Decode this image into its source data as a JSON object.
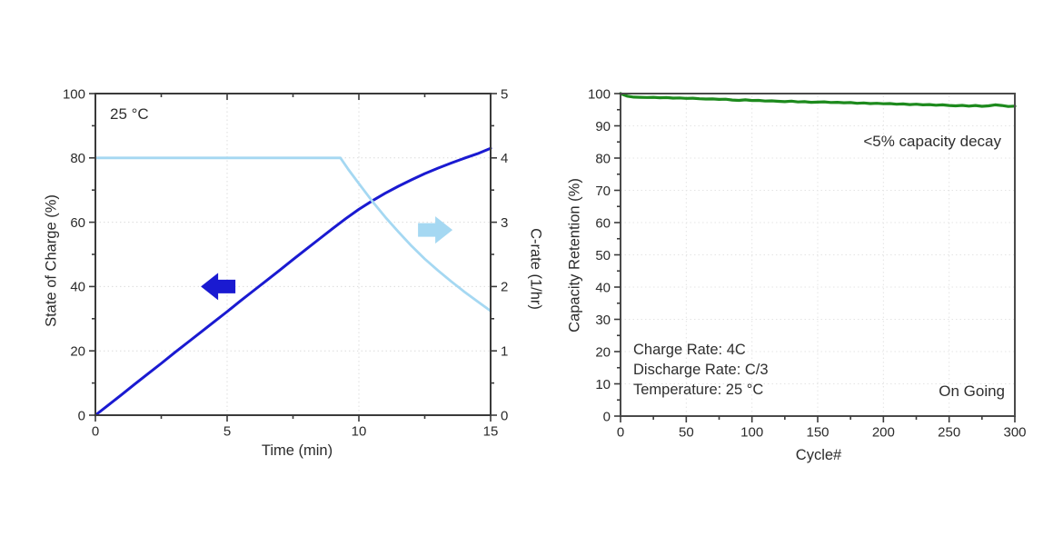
{
  "page": {
    "background": "#ffffff",
    "text_color": "#2f2f2f",
    "frame_color": "#3a3a3a",
    "grid_color": "#dcdcdc"
  },
  "chart_data": [
    {
      "id": "fast-charge-profile",
      "type": "line",
      "title": "",
      "xlabel": "Time (min)",
      "ylabel_left": "State of Charge (%)",
      "ylabel_right": "C-rate (1/hr)",
      "annotation": "25 °C",
      "xlim": [
        0,
        15
      ],
      "x_major": 5,
      "x_minor": 2.5,
      "ylim_left": [
        0,
        100
      ],
      "y_major_left": 20,
      "y_minor_left": 10,
      "ylim_right": [
        0,
        5
      ],
      "y_major_right": 1,
      "y_minor_right": 0.5,
      "grid": "dotted",
      "legend": "none",
      "series": [
        {
          "name": "State of Charge",
          "axis": "left",
          "color": "#1a1ad1",
          "width": 3,
          "points": [
            [
              0,
              0
            ],
            [
              0.5,
              3.2
            ],
            [
              1,
              6.4
            ],
            [
              1.5,
              9.7
            ],
            [
              2,
              12.9
            ],
            [
              2.5,
              16.1
            ],
            [
              3,
              19.4
            ],
            [
              3.5,
              22.6
            ],
            [
              4,
              25.8
            ],
            [
              4.5,
              29.0
            ],
            [
              5,
              32.2
            ],
            [
              5.5,
              35.5
            ],
            [
              6,
              38.7
            ],
            [
              6.5,
              41.9
            ],
            [
              7,
              45.1
            ],
            [
              7.5,
              48.4
            ],
            [
              8,
              51.6
            ],
            [
              8.5,
              54.8
            ],
            [
              9,
              58.0
            ],
            [
              9.5,
              61.1
            ],
            [
              10,
              64.0
            ],
            [
              10.5,
              66.6
            ],
            [
              11,
              69.0
            ],
            [
              11.5,
              71.2
            ],
            [
              12,
              73.2
            ],
            [
              12.5,
              75.1
            ],
            [
              13,
              76.8
            ],
            [
              13.5,
              78.4
            ],
            [
              14,
              79.9
            ],
            [
              14.5,
              81.3
            ],
            [
              15,
              83.0
            ]
          ]
        },
        {
          "name": "C-rate",
          "axis": "right",
          "color": "#a5d8f2",
          "width": 2.8,
          "points": [
            [
              0,
              4
            ],
            [
              9.3,
              4
            ],
            [
              9.6,
              3.82
            ],
            [
              10,
              3.6
            ],
            [
              10.5,
              3.33
            ],
            [
              11,
              3.08
            ],
            [
              11.5,
              2.85
            ],
            [
              12,
              2.63
            ],
            [
              12.5,
              2.43
            ],
            [
              13,
              2.25
            ],
            [
              13.5,
              2.08
            ],
            [
              14,
              1.92
            ],
            [
              14.5,
              1.77
            ],
            [
              15,
              1.62
            ]
          ]
        }
      ],
      "arrows": [
        {
          "name": "soc-arrow",
          "direction": "left",
          "color": "#1a1ad1",
          "x": 4.66,
          "y": 40,
          "y_axis": "left"
        },
        {
          "name": "crate-arrow",
          "direction": "right",
          "color": "#a5d8f2",
          "x": 12.9,
          "y": 2.88,
          "y_axis": "right"
        }
      ]
    },
    {
      "id": "cycle-life",
      "type": "line",
      "title": "",
      "xlabel": "Cycle#",
      "ylabel": "Capacity Retention (%)",
      "annotations": {
        "decay": "<5% capacity decay",
        "charge_rate": "Charge Rate: 4C",
        "discharge_rate": "Discharge Rate: C/3",
        "temperature": "Temperature: 25 °C",
        "status": "On Going"
      },
      "xlim": [
        0,
        300
      ],
      "x_major": 50,
      "x_minor": 25,
      "ylim": [
        0,
        100
      ],
      "y_major": 10,
      "y_minor": 5,
      "grid": "dotted",
      "legend": "none",
      "series": [
        {
          "name": "Capacity Retention",
          "color": "#1d8a1d",
          "width": 3.2,
          "x_start": 0,
          "x_step": 5,
          "values": [
            100,
            99.2,
            98.9,
            98.85,
            98.8,
            98.85,
            98.7,
            98.75,
            98.6,
            98.65,
            98.5,
            98.55,
            98.4,
            98.3,
            98.35,
            98.2,
            98.25,
            98.0,
            97.9,
            98.05,
            97.85,
            97.9,
            97.7,
            97.75,
            97.6,
            97.5,
            97.65,
            97.4,
            97.5,
            97.3,
            97.35,
            97.45,
            97.25,
            97.3,
            97.15,
            97.2,
            97.0,
            97.1,
            96.9,
            97.0,
            96.85,
            96.9,
            96.7,
            96.8,
            96.6,
            96.7,
            96.5,
            96.6,
            96.4,
            96.5,
            96.3,
            96.2,
            96.35,
            96.1,
            96.3,
            96.05,
            96.2,
            96.5,
            96.3,
            96.0,
            96.1
          ]
        }
      ]
    }
  ]
}
